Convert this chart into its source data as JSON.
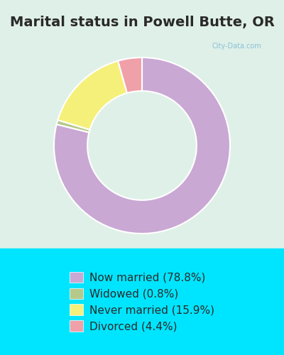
{
  "title": "Marital status in Powell Butte, OR",
  "title_fontsize": 14,
  "title_color": "#2a2a2a",
  "background_top": "#e8f5e9",
  "background_bottom": "#00e5ff",
  "legend_bg": "#00e5ff",
  "slices": [
    {
      "label": "Now married (78.8%)",
      "value": 78.8,
      "color": "#c9a8d4"
    },
    {
      "label": "Widowed (0.8%)",
      "value": 0.8,
      "color": "#b5c98a"
    },
    {
      "label": "Never married (15.9%)",
      "value": 15.9,
      "color": "#f5f07a"
    },
    {
      "label": "Divorced (4.4%)",
      "value": 4.4,
      "color": "#f0a0a8"
    }
  ],
  "donut_width": 0.38,
  "legend_fontsize": 11,
  "legend_text_color": "#2a2a2a",
  "watermark": "City-Data.com"
}
